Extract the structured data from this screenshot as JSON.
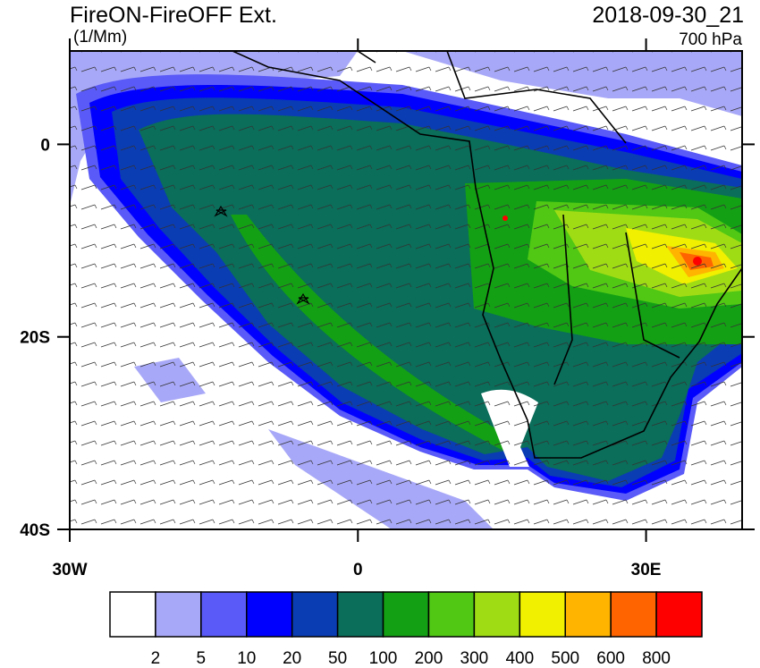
{
  "header": {
    "title": "FireON-FireOFF Ext.",
    "units": "(1/Mm)",
    "time": "2018-09-30_21",
    "level": "700 hPa"
  },
  "map": {
    "xlim": [
      -30,
      40
    ],
    "ylim": [
      -40,
      9.7
    ],
    "xticks": [
      {
        "value": -30,
        "label": "30W"
      },
      0,
      {
        "value": 30,
        "label": "30E"
      }
    ],
    "yticks": [
      0,
      {
        "value": -20,
        "label": "20S"
      },
      {
        "value": -40,
        "label": "40S"
      }
    ]
  },
  "colorbar": {
    "levels": [
      2,
      5,
      10,
      20,
      50,
      100,
      200,
      300,
      400,
      500,
      600,
      800
    ],
    "colors": [
      "#ffffff",
      "#a8a8f8",
      "#5a5af8",
      "#0000ff",
      "#0a3cb4",
      "#0a6e5a",
      "#14a014",
      "#50c814",
      "#a0dc14",
      "#f0f000",
      "#ffb400",
      "#ff6400",
      "#ff0000"
    ]
  }
}
